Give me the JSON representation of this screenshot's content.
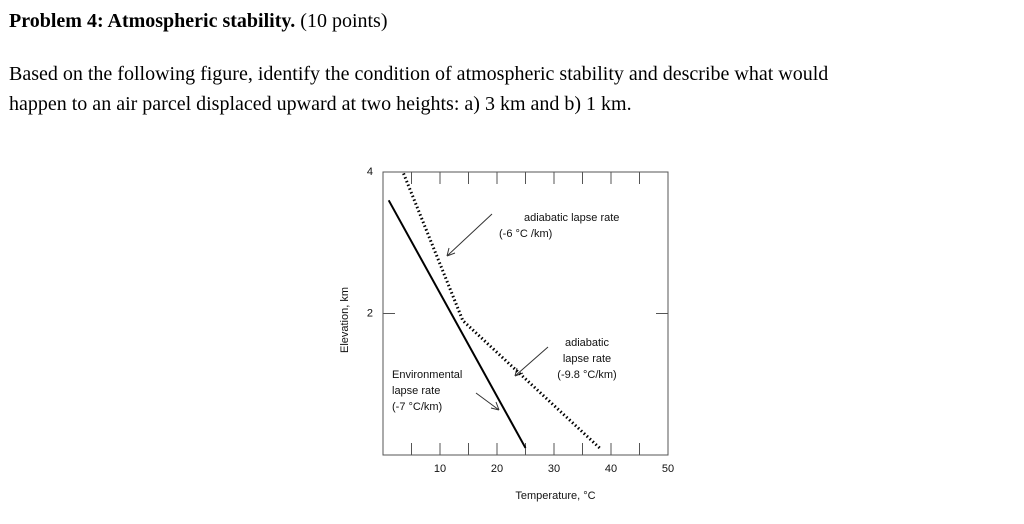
{
  "problem": {
    "heading": "Problem 4: Atmospheric stability.",
    "points": "(10 points)",
    "lines": [
      "Based on the following figure, identify the condition of atmospheric stability and describe what would",
      "happen to an air parcel displaced upward at two heights: a) 3 km and b) 1 km."
    ]
  },
  "chart_data": {
    "type": "line",
    "xlabel": "Temperature, °C",
    "ylabel": "Elevation, km",
    "xlim": [
      0,
      50
    ],
    "ylim": [
      0,
      4
    ],
    "xticks": [
      10,
      20,
      30,
      40,
      50
    ],
    "xminorticks": [
      5,
      15,
      25,
      35,
      45
    ],
    "yticks": [
      2,
      4
    ],
    "series": [
      {
        "style": "solid",
        "color": "#000000",
        "x": [
          25,
          1
        ],
        "values": [
          0.1,
          3.6
        ]
      },
      {
        "style": "dotted",
        "color": "#000000",
        "x": [
          38,
          14,
          3.5
        ],
        "values": [
          0.1,
          1.9,
          4
        ]
      }
    ],
    "annotations": [
      [
        "adiabatic lapse rate",
        "(-6 °C /km)"
      ],
      [
        "adiabatic",
        "lapse rate",
        "(-9.8 °C/km)"
      ],
      [
        "Environmental",
        "lapse rate",
        "(-7 °C/km)"
      ]
    ]
  }
}
